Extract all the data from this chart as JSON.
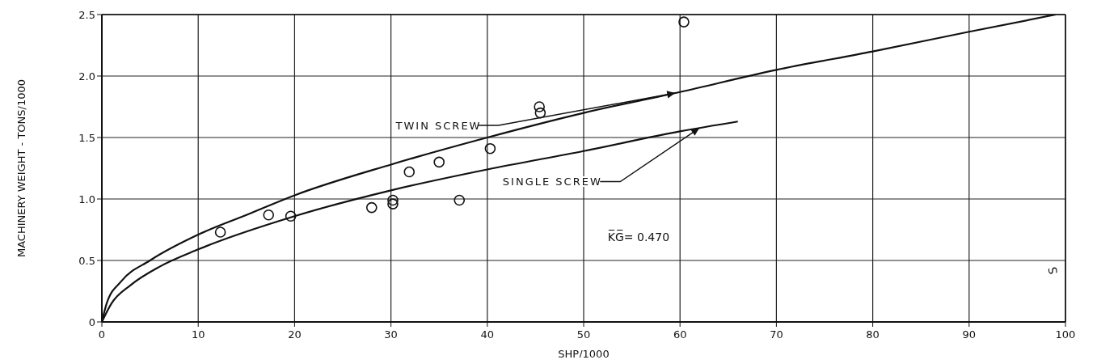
{
  "chart_data": {
    "type": "line",
    "xlabel": "SHP/1000",
    "ylabel": "MACHINERY WEIGHT - TONS/1000",
    "xlim": [
      0,
      100
    ],
    "xticks": [
      0,
      10,
      20,
      30,
      40,
      50,
      60,
      70,
      80,
      90,
      100
    ],
    "ylim": [
      0,
      2.5
    ],
    "yticks": [
      {
        "value": 0,
        "label": "0"
      },
      {
        "value": 0.5,
        "label": "0.5"
      },
      {
        "value": 1,
        "label": "1.0"
      },
      {
        "value": 1.5,
        "label": "1.5"
      },
      {
        "value": 2,
        "label": "2.0"
      },
      {
        "value": 2.5,
        "label": "2.5"
      }
    ],
    "grid": true,
    "legend": false,
    "line_style": "solid",
    "series": [
      {
        "name": "TWIN SCREW",
        "type": "line",
        "color": "#111111",
        "marker": "none",
        "x": [
          0,
          0.5,
          2,
          5,
          10,
          15,
          20,
          30,
          40,
          50,
          60,
          70,
          80,
          90,
          99
        ],
        "values": [
          0,
          0.15,
          0.33,
          0.5,
          0.71,
          0.87,
          1.03,
          1.28,
          1.5,
          1.7,
          1.87,
          2.05,
          2.2,
          2.36,
          2.5
        ]
      },
      {
        "name": "SINGLE SCREW",
        "type": "line",
        "color": "#111111",
        "marker": "none",
        "x": [
          0,
          1,
          3,
          6,
          10,
          20,
          30,
          40,
          50,
          60,
          66
        ],
        "values": [
          0,
          0.15,
          0.3,
          0.45,
          0.59,
          0.86,
          1.07,
          1.24,
          1.39,
          1.55,
          1.63
        ]
      },
      {
        "type": "scatter",
        "color": "#111111",
        "marker": "circle",
        "x": [
          12.3,
          17.3,
          19.6,
          28,
          30.2,
          30.2,
          31.9,
          35,
          37.1,
          40.3,
          45.4,
          45.5,
          60.4
        ],
        "values": [
          0.73,
          0.87,
          0.86,
          0.93,
          0.99,
          0.96,
          1.22,
          1.3,
          0.99,
          1.41,
          1.75,
          1.7,
          2.44
        ]
      }
    ],
    "annotations": [
      "K̅G̅= 0.470",
      "S"
    ]
  }
}
